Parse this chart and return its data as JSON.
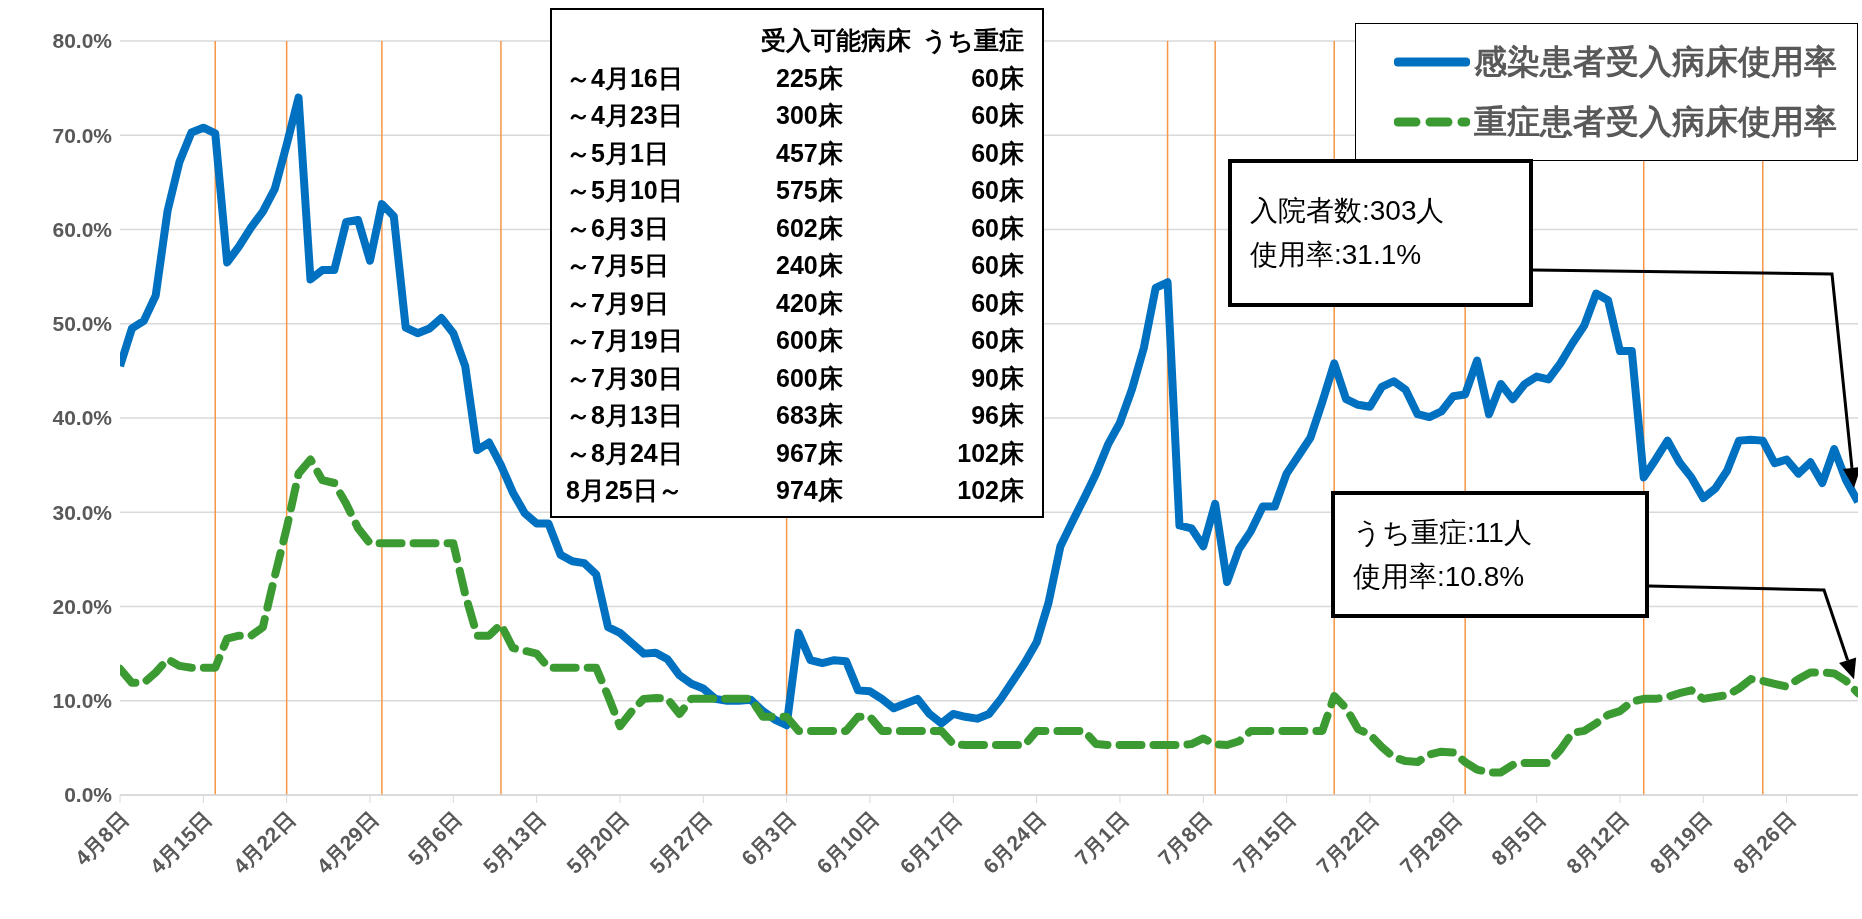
{
  "chart_data": {
    "type": "line",
    "x": [
      "--04-08",
      "--04-09",
      "--04-10",
      "--04-11",
      "--04-12",
      "--04-13",
      "--04-14",
      "--04-15",
      "--04-16",
      "--04-17",
      "--04-18",
      "--04-19",
      "--04-20",
      "--04-21",
      "--04-22",
      "--04-23",
      "--04-24",
      "--04-25",
      "--04-26",
      "--04-27",
      "--04-28",
      "--04-29",
      "--04-30",
      "--05-01",
      "--05-02",
      "--05-03",
      "--05-04",
      "--05-05",
      "--05-06",
      "--05-07",
      "--05-08",
      "--05-09",
      "--05-10",
      "--05-11",
      "--05-12",
      "--05-13",
      "--05-14",
      "--05-15",
      "--05-16",
      "--05-17",
      "--05-18",
      "--05-19",
      "--05-20",
      "--05-21",
      "--05-22",
      "--05-23",
      "--05-24",
      "--05-25",
      "--05-26",
      "--05-27",
      "--05-28",
      "--05-29",
      "--05-30",
      "--05-31",
      "--06-01",
      "--06-02",
      "--06-03",
      "--06-04",
      "--06-05",
      "--06-06",
      "--06-07",
      "--06-08",
      "--06-09",
      "--06-10",
      "--06-11",
      "--06-12",
      "--06-13",
      "--06-14",
      "--06-15",
      "--06-16",
      "--06-17",
      "--06-18",
      "--06-19",
      "--06-20",
      "--06-21",
      "--06-22",
      "--06-23",
      "--06-24",
      "--06-25",
      "--06-26",
      "--06-27",
      "--06-28",
      "--06-29",
      "--06-30",
      "--07-01",
      "--07-02",
      "--07-03",
      "--07-04",
      "--07-05",
      "--07-06",
      "--07-07",
      "--07-08",
      "--07-09",
      "--07-10",
      "--07-11",
      "--07-12",
      "--07-13",
      "--07-14",
      "--07-15",
      "--07-16",
      "--07-17",
      "--07-18",
      "--07-19",
      "--07-20",
      "--07-21",
      "--07-22",
      "--07-23",
      "--07-24",
      "--07-25",
      "--07-26",
      "--07-27",
      "--07-28",
      "--07-29",
      "--07-30",
      "--07-31",
      "--08-01",
      "--08-02",
      "--08-03",
      "--08-04",
      "--08-05",
      "--08-06",
      "--08-07",
      "--08-08",
      "--08-09",
      "--08-10",
      "--08-11",
      "--08-12",
      "--08-13",
      "--08-14",
      "--08-15",
      "--08-16",
      "--08-17",
      "--08-18",
      "--08-19",
      "--08-20",
      "--08-21",
      "--08-22",
      "--08-23",
      "--08-24",
      "--08-25",
      "--08-26",
      "--08-27",
      "--08-28",
      "--08-29",
      "--08-30",
      "--08-31",
      "--09-01"
    ],
    "series": [
      {
        "name": "感染患者受入病床使用率",
        "color": "#0070c0",
        "line_style": "solid",
        "values": [
          45.5,
          49.5,
          50.3,
          53,
          62,
          67.2,
          70.3,
          70.8,
          70.2,
          56.5,
          58.2,
          60.2,
          61.9,
          64.3,
          69,
          74,
          54.7,
          55.7,
          55.7,
          60.8,
          61,
          56.7,
          62.7,
          61.4,
          49.6,
          49,
          49.5,
          50.6,
          49,
          45.5,
          36.6,
          37.4,
          35,
          32.1,
          29.9,
          28.8,
          28.8,
          25.5,
          24.8,
          24.6,
          23.4,
          17.8,
          17.2,
          16.1,
          15,
          15.1,
          14.4,
          12.7,
          11.8,
          11.3,
          10.2,
          10,
          10,
          10.1,
          8.9,
          8,
          7.4,
          17.2,
          14.3,
          14,
          14.3,
          14.2,
          11.1,
          11,
          10.2,
          9.2,
          9.7,
          10.2,
          8.6,
          7.6,
          8.6,
          8.3,
          8.1,
          8.6,
          10.2,
          12.1,
          14,
          16.2,
          20.4,
          26.4,
          29,
          31.5,
          34.1,
          37.2,
          39.5,
          43,
          47.4,
          53.8,
          54.4,
          28.6,
          28.3,
          26.4,
          30.9,
          22.6,
          26.1,
          28,
          30.6,
          30.6,
          34.1,
          36,
          37.9,
          41.7,
          45.8,
          42,
          41.4,
          41.2,
          43.3,
          43.9,
          43,
          40.4,
          40.1,
          40.7,
          42.3,
          42.5,
          46.1,
          40.4,
          43.6,
          42,
          43.6,
          44.4,
          44.1,
          45.8,
          47.9,
          49.8,
          53.2,
          52.5,
          47.1,
          47.1,
          33.7,
          35.6,
          37.6,
          35.3,
          33.7,
          31.5,
          32.5,
          34.4,
          37.6,
          37.7,
          37.6,
          35.2,
          35.6,
          34.1,
          35.3,
          33.1,
          36.7,
          33.4,
          31.1
        ]
      },
      {
        "name": "重症患者受入病床使用率",
        "color": "#3c9a33",
        "line_style": "dashed",
        "values": [
          13.4,
          11.9,
          11.9,
          13,
          14.4,
          13.7,
          13.5,
          13.5,
          13.5,
          16.6,
          16.9,
          16.9,
          17.8,
          23.2,
          28.3,
          34.1,
          35.6,
          33.4,
          33.1,
          30.9,
          28.3,
          26.7,
          26.7,
          26.7,
          26.7,
          26.7,
          26.7,
          26.7,
          26.7,
          21.3,
          16.9,
          16.9,
          18.1,
          15.6,
          15.3,
          15,
          13.5,
          13.5,
          13.5,
          13.5,
          13.5,
          10.5,
          7.3,
          8.9,
          10.2,
          10.3,
          10.2,
          8.6,
          10.2,
          10.2,
          10.2,
          10.2,
          10.2,
          10.2,
          8.3,
          8.3,
          8.3,
          6.8,
          6.8,
          6.8,
          6.8,
          6.8,
          8.3,
          8.3,
          6.8,
          6.8,
          6.8,
          6.8,
          6.8,
          6.8,
          5.4,
          5.3,
          5.3,
          5.3,
          5.3,
          5.3,
          5.3,
          6.8,
          6.8,
          6.8,
          6.8,
          6.8,
          5.4,
          5.3,
          5.3,
          5.3,
          5.3,
          5.3,
          5.3,
          5.3,
          5.4,
          6,
          5.4,
          5.3,
          5.7,
          6.8,
          6.8,
          6.8,
          6.8,
          6.8,
          6.8,
          6.8,
          10.5,
          9.2,
          7,
          6.4,
          5.1,
          4,
          3.6,
          3.5,
          4.3,
          4.6,
          4.5,
          3.5,
          2.7,
          2.4,
          2.4,
          3.2,
          3.4,
          3.4,
          3.4,
          4.8,
          6.6,
          6.8,
          7.6,
          8.5,
          8.9,
          9.9,
          10.2,
          10.2,
          10.4,
          10.8,
          11.1,
          10.2,
          10.4,
          10.6,
          11.3,
          12.3,
          12.1,
          11.8,
          11.5,
          12.3,
          13,
          13,
          12.9,
          12.1,
          10.8
        ]
      }
    ],
    "xlim": [
      "--04-08",
      "--09-01"
    ],
    "xticks": [
      {
        "value": "--04-08",
        "label": "4月8日"
      },
      {
        "value": "--04-15",
        "label": "4月15日"
      },
      {
        "value": "--04-22",
        "label": "4月22日"
      },
      {
        "value": "--04-29",
        "label": "4月29日"
      },
      {
        "value": "--05-06",
        "label": "5月6日"
      },
      {
        "value": "--05-13",
        "label": "5月13日"
      },
      {
        "value": "--05-20",
        "label": "5月20日"
      },
      {
        "value": "--05-27",
        "label": "5月27日"
      },
      {
        "value": "--06-03",
        "label": "6月3日"
      },
      {
        "value": "--06-10",
        "label": "6月10日"
      },
      {
        "value": "--06-17",
        "label": "6月17日"
      },
      {
        "value": "--06-24",
        "label": "6月24日"
      },
      {
        "value": "--07-01",
        "label": "7月1日"
      },
      {
        "value": "--07-08",
        "label": "7月8日"
      },
      {
        "value": "--07-15",
        "label": "7月15日"
      },
      {
        "value": "--07-22",
        "label": "7月22日"
      },
      {
        "value": "--07-29",
        "label": "7月29日"
      },
      {
        "value": "--08-05",
        "label": "8月5日"
      },
      {
        "value": "--08-12",
        "label": "8月12日"
      },
      {
        "value": "--08-19",
        "label": "8月19日"
      },
      {
        "value": "--08-26",
        "label": "8月26日"
      }
    ],
    "ylim": [
      0,
      80
    ],
    "yticks": [
      {
        "value": 0,
        "label": "0.0%"
      },
      {
        "value": 10,
        "label": "10.0%"
      },
      {
        "value": 20,
        "label": "20.0%"
      },
      {
        "value": 30,
        "label": "30.0%"
      },
      {
        "value": 40,
        "label": "40.0%"
      },
      {
        "value": 50,
        "label": "50.0%"
      },
      {
        "value": 60,
        "label": "60.0%"
      },
      {
        "value": 70,
        "label": "70.0%"
      },
      {
        "value": 80,
        "label": "80.0%"
      }
    ],
    "grid": "y",
    "legend": "top right",
    "marker": "none",
    "ref_lines": [
      {
        "axis": "x",
        "value": "--04-16",
        "color": "#f79646"
      },
      {
        "axis": "x",
        "value": "--04-22",
        "color": "#f79646"
      },
      {
        "axis": "x",
        "value": "--04-30",
        "color": "#f79646"
      },
      {
        "axis": "x",
        "value": "--05-10",
        "color": "#f79646"
      },
      {
        "axis": "x",
        "value": "--06-03",
        "color": "#f79646"
      },
      {
        "axis": "x",
        "value": "--07-05",
        "color": "#f79646"
      },
      {
        "axis": "x",
        "value": "--07-09",
        "color": "#f79646"
      },
      {
        "axis": "x",
        "value": "--07-19",
        "color": "#f79646"
      },
      {
        "axis": "x",
        "value": "--07-30",
        "color": "#f79646"
      },
      {
        "axis": "x",
        "value": "--08-14",
        "color": "#f79646"
      },
      {
        "axis": "x",
        "value": "--08-24",
        "color": "#f79646"
      }
    ],
    "annotations": [
      "受入可能病床 うち重症",
      "～4月16日 225床 60床",
      "～4月23日 300床 60床",
      "～5月1日 457床 60床",
      "～5月10日 575床 60床",
      "～6月3日 602床 60床",
      "～7月5日 240床 60床",
      "～7月9日 420床 60床",
      "～7月19日 600床 60床",
      "～7月30日 600床 90床",
      "～8月13日 683床 96床",
      "～8月24日 967床 102床",
      "8月25日～ 974床 102床",
      "入院者数:303人使用率:31.1%",
      "うち重症:11人使用率:10.8%"
    ]
  }
}
